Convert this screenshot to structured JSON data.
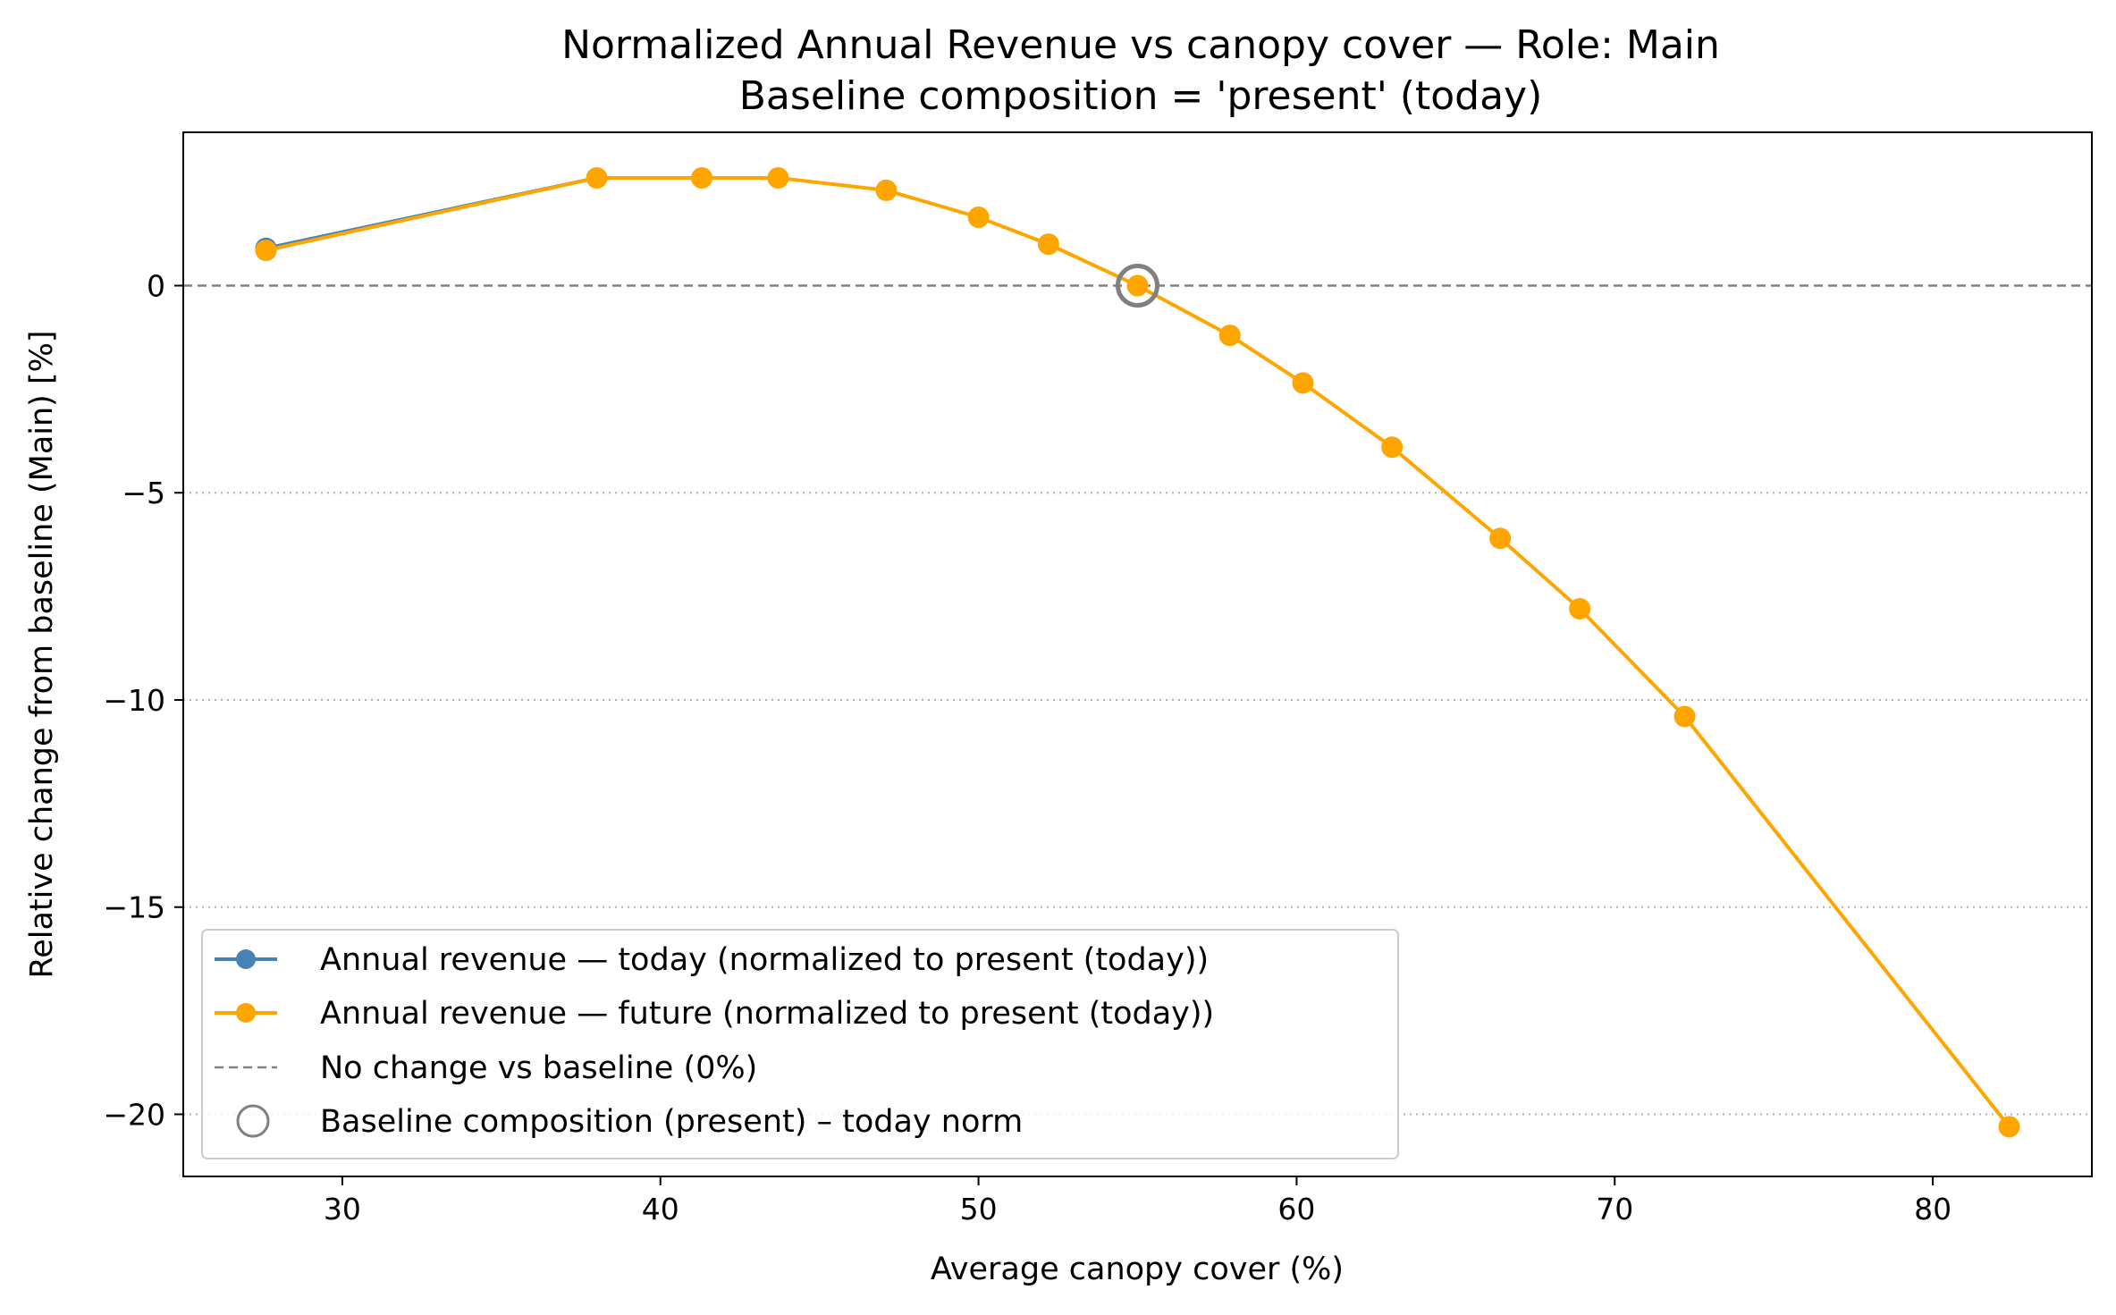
{
  "chart_data": {
    "type": "line",
    "title": "Normalized Annual Revenue vs canopy cover — Role: Main",
    "subtitle": "Baseline composition = 'present' (today)",
    "xlabel": "Average canopy cover (%)",
    "ylabel": "Relative change from baseline (Main) [%]",
    "xlim": [
      25,
      85
    ],
    "ylim": [
      -21.5,
      3.7
    ],
    "x_ticks": [
      30,
      40,
      50,
      60,
      70,
      80
    ],
    "y_ticks": [
      0,
      -5,
      -10,
      -15,
      -20
    ],
    "x_tick_labels": [
      "30",
      "40",
      "50",
      "60",
      "70",
      "80"
    ],
    "y_tick_labels": [
      "0",
      "−5",
      "−10",
      "−15",
      "−20"
    ],
    "grid": "horizontal dotted at y ticks",
    "legend_position": "lower-left",
    "series": [
      {
        "name": "Annual revenue — today (normalized to present (today))",
        "color": "#4682b4",
        "marker": "circle",
        "x": [
          27.6
        ],
        "y": [
          0.9
        ]
      },
      {
        "name": "Annual revenue — future (normalized to present (today))",
        "color": "#ffa500",
        "marker": "circle",
        "x": [
          27.6,
          38.0,
          41.3,
          43.7,
          47.1,
          50.0,
          52.2,
          55.0,
          57.9,
          60.2,
          63.0,
          66.4,
          68.9,
          72.2,
          82.4
        ],
        "y": [
          0.85,
          2.6,
          2.6,
          2.6,
          2.3,
          1.65,
          1.0,
          0.0,
          -1.2,
          -2.35,
          -3.9,
          -6.1,
          -7.8,
          -10.4,
          -20.3
        ]
      }
    ],
    "reference_line": {
      "name": "No change vs baseline (0%)",
      "y": 0,
      "color": "#808080",
      "style": "dashed"
    },
    "baseline_marker": {
      "name": "Baseline composition (present) – today norm",
      "x": 55.0,
      "y": 0,
      "color": "#808080"
    }
  }
}
